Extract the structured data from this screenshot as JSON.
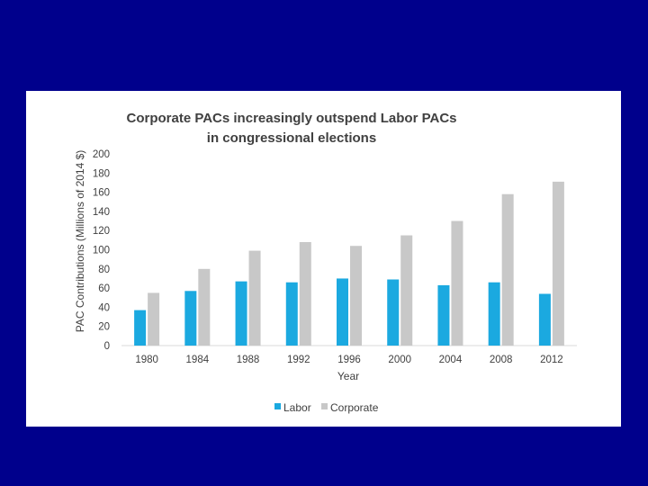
{
  "chart_data": {
    "type": "bar",
    "title_line1": "Corporate PACs increasingly outspend Labor PACs",
    "title_line2": "in congressional elections",
    "xlabel": "Year",
    "ylabel": "PAC Contributions  (Millions of 2014 $)",
    "categories": [
      "1980",
      "1984",
      "1988",
      "1992",
      "1996",
      "2000",
      "2004",
      "2008",
      "2012"
    ],
    "series": [
      {
        "name": "Labor",
        "color": "#1ba9e0",
        "values": [
          37,
          57,
          67,
          66,
          70,
          69,
          63,
          66,
          54
        ]
      },
      {
        "name": "Corporate",
        "color": "#c8c8c8",
        "values": [
          55,
          80,
          99,
          108,
          104,
          115,
          130,
          158,
          171
        ]
      }
    ],
    "ylim": [
      0,
      200
    ],
    "yticks": [
      "0",
      "20",
      "40",
      "60",
      "80",
      "100",
      "120",
      "140",
      "160",
      "180",
      "200"
    ],
    "grid": false,
    "legend_position": "bottom-center"
  }
}
